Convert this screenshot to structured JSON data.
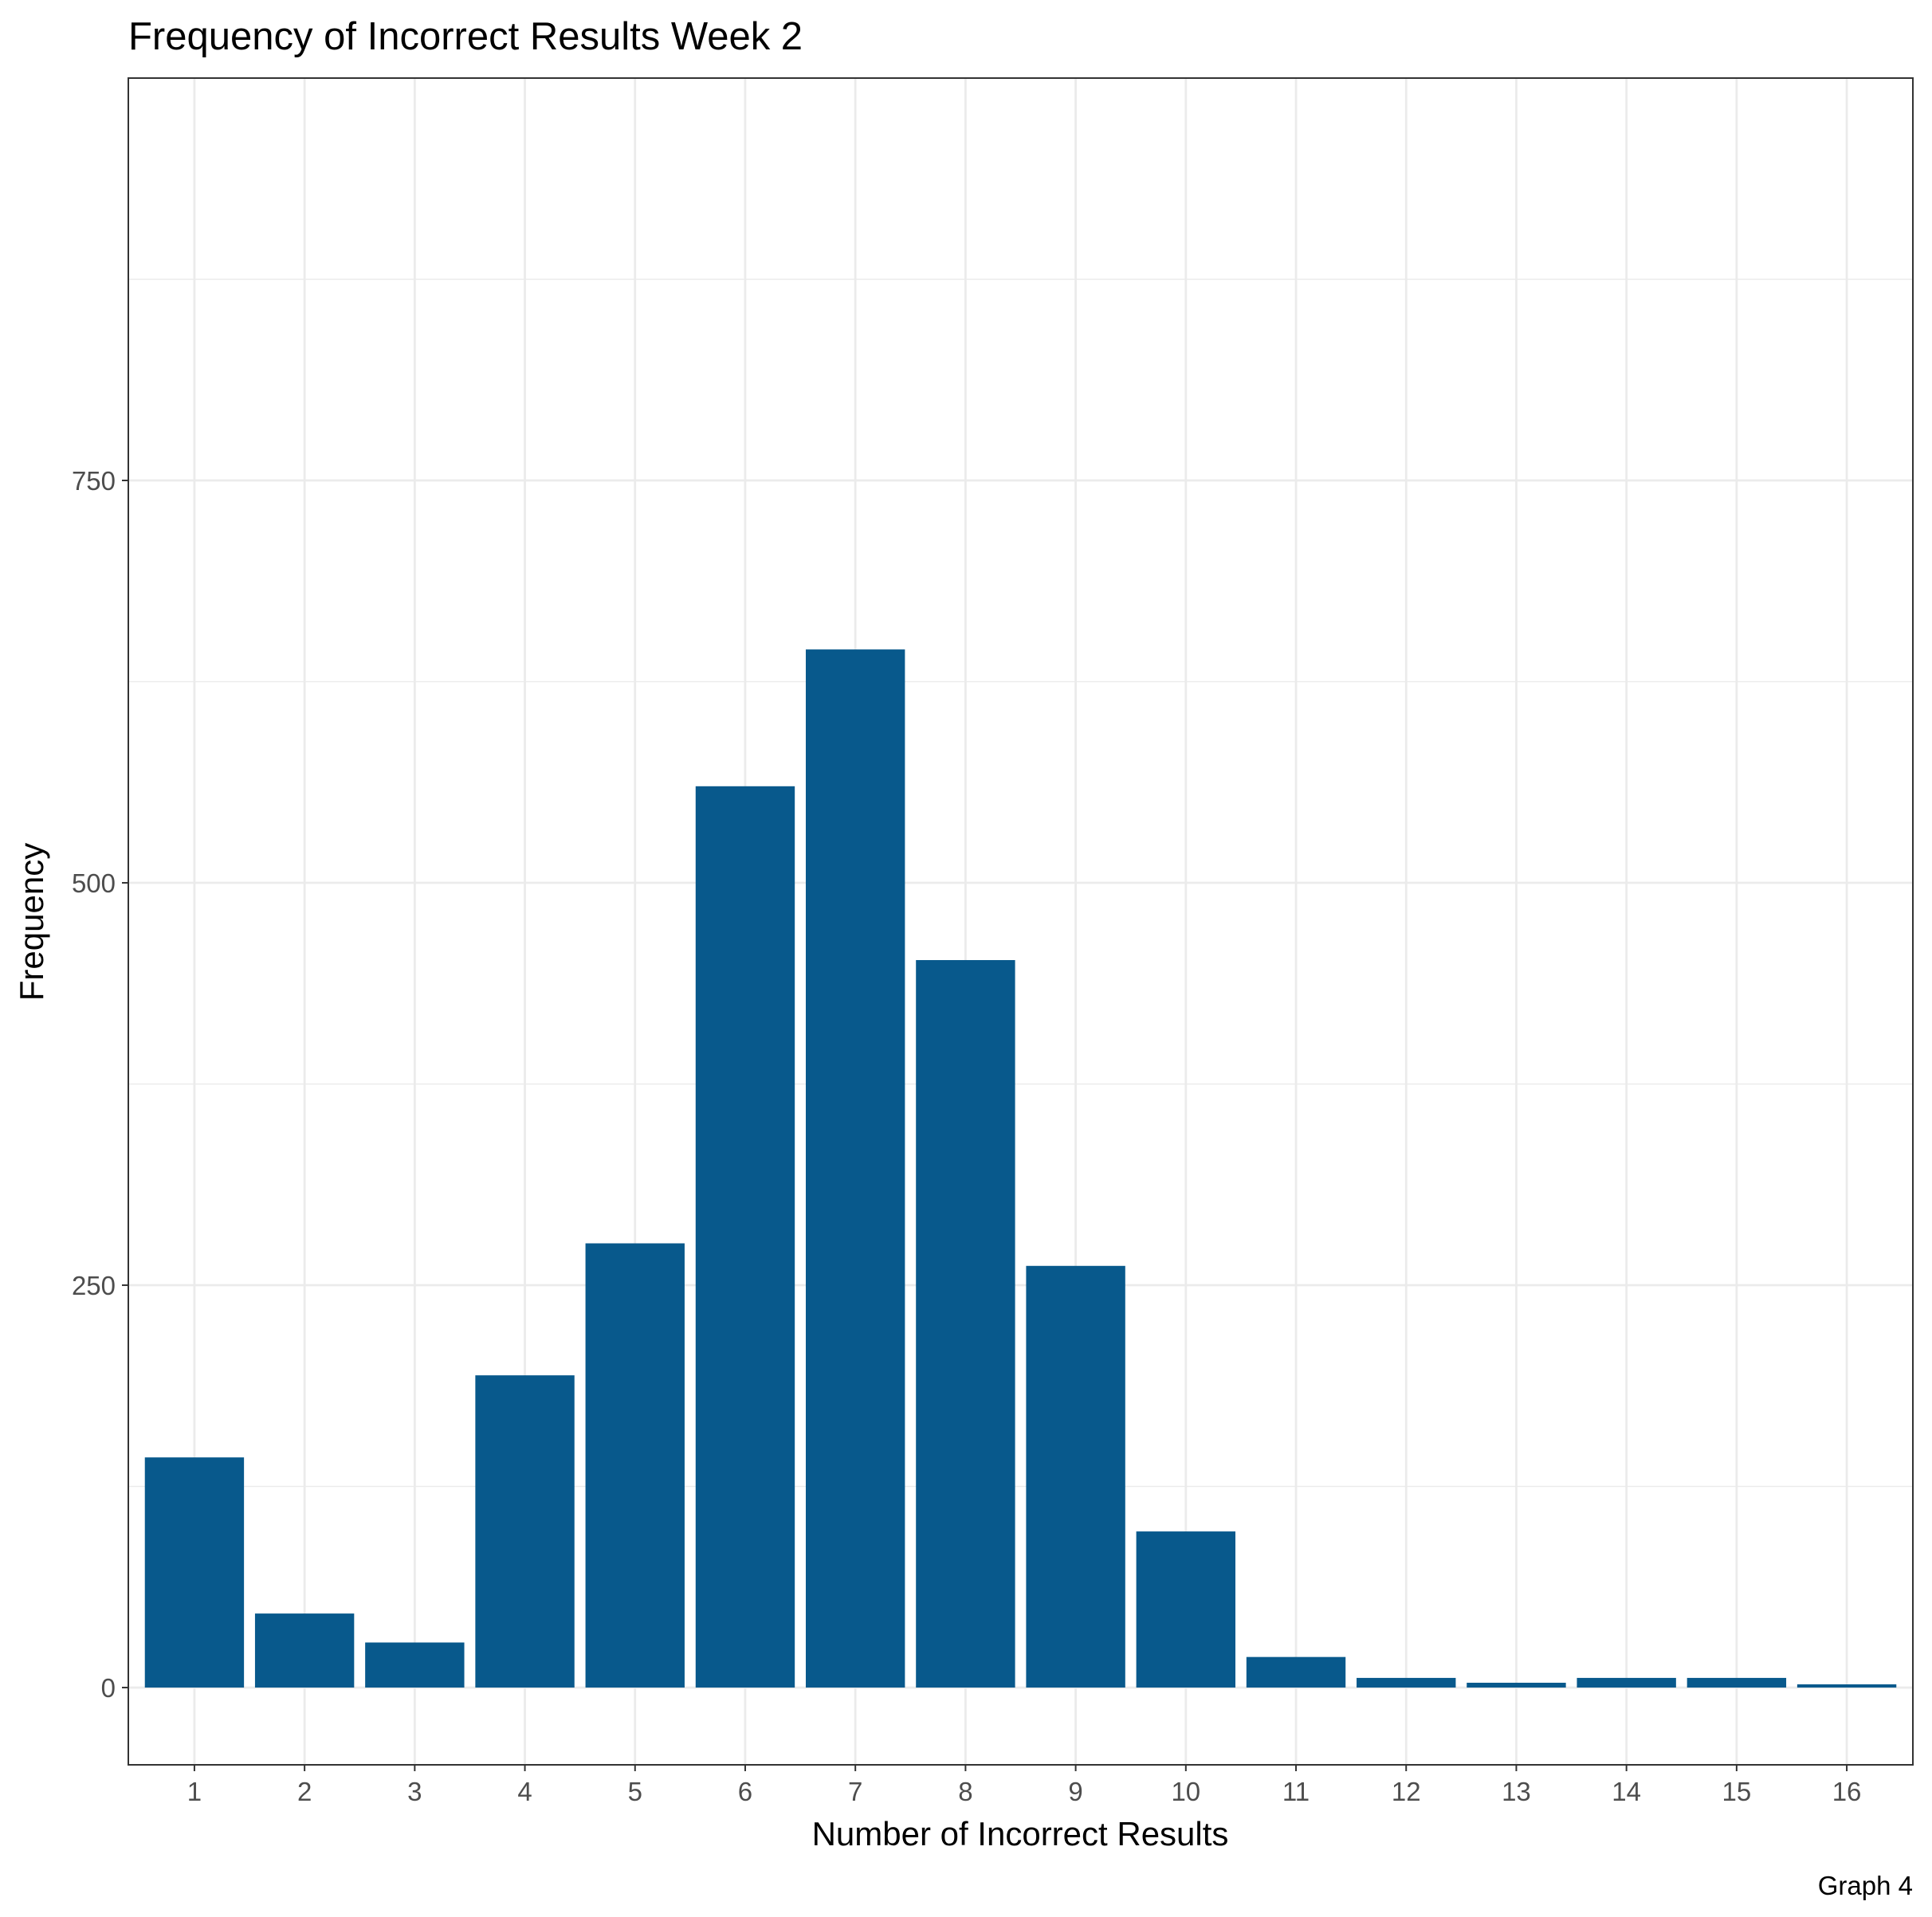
{
  "chart_data": {
    "type": "bar",
    "title": "Frequency of Incorrect Results Week 2",
    "xlabel": "Number of Incorrect Results",
    "ylabel": "Frequency",
    "caption": "Graph 4",
    "categories": [
      "1",
      "2",
      "3",
      "4",
      "5",
      "6",
      "7",
      "8",
      "9",
      "10",
      "11",
      "12",
      "13",
      "14",
      "15",
      "16"
    ],
    "values": [
      143,
      46,
      28,
      194,
      276,
      560,
      645,
      452,
      262,
      97,
      19,
      6,
      3,
      6,
      6,
      2
    ],
    "y_ticks": [
      0,
      250,
      500,
      750
    ],
    "ylim": [
      -48,
      1000
    ],
    "grid": true,
    "legend": "none",
    "bar_color": "#08598c"
  }
}
